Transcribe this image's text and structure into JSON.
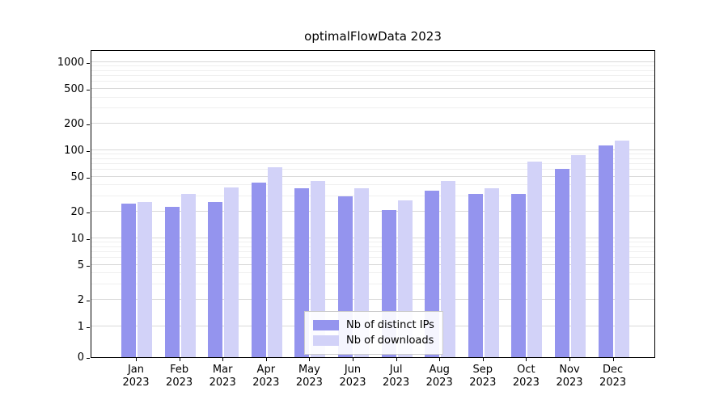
{
  "chart_data": {
    "type": "bar",
    "title": "optimalFlowData 2023",
    "categories": [
      "Jan",
      "Feb",
      "Mar",
      "Apr",
      "May",
      "Jun",
      "Jul",
      "Aug",
      "Sep",
      "Oct",
      "Nov",
      "Dec"
    ],
    "year_label": "2023",
    "series": [
      {
        "name": "Nb of distinct IPs",
        "color": "#9494ee",
        "values": [
          25,
          23,
          26,
          43,
          37,
          30,
          21,
          35,
          32,
          32,
          62,
          115
        ]
      },
      {
        "name": "Nb of downloads",
        "color": "#d2d2f8",
        "values": [
          26,
          32,
          38,
          64,
          45,
          37,
          27,
          45,
          37,
          75,
          88,
          130
        ]
      }
    ],
    "yticks": [
      0,
      1,
      2,
      5,
      10,
      20,
      50,
      100,
      200,
      500,
      1000
    ],
    "minor_yticks": [
      3,
      4,
      6,
      7,
      8,
      9,
      30,
      40,
      60,
      70,
      80,
      90,
      300,
      400,
      600,
      700,
      800,
      900
    ],
    "scale": "symlog",
    "ylim": [
      0,
      1200
    ],
    "grid": true,
    "legend_position": "lower center",
    "xlabel": "",
    "ylabel": ""
  },
  "colors": {
    "grid_major": "#d9d9d9",
    "grid_minor": "#efefef",
    "axis": "#000000",
    "background": "#ffffff",
    "legend_border": "#cccccc"
  }
}
